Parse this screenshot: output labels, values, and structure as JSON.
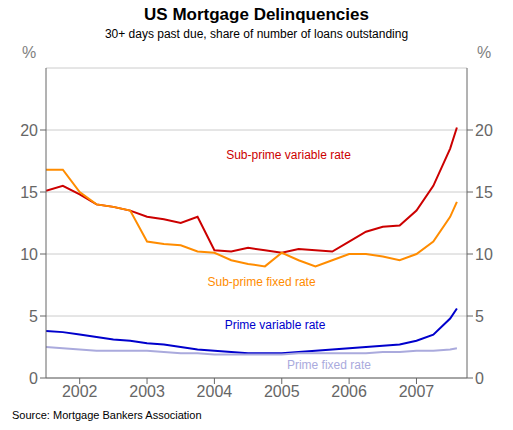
{
  "chart_data": {
    "type": "line",
    "title": "US Mortgage Delinquencies",
    "subtitle": "30+ days past due, share of number of loans outstanding",
    "source": "Source: Mortgage Bankers Association",
    "ylabel": "%",
    "y2label": "%",
    "x": [
      2001.5,
      2001.75,
      2002.0,
      2002.25,
      2002.5,
      2002.75,
      2003.0,
      2003.25,
      2003.5,
      2003.75,
      2004.0,
      2004.25,
      2004.5,
      2004.75,
      2005.0,
      2005.25,
      2005.5,
      2005.75,
      2006.0,
      2006.25,
      2006.5,
      2006.75,
      2007.0,
      2007.25,
      2007.5,
      2007.6
    ],
    "xlim": [
      2001.5,
      2007.75
    ],
    "xticks": [
      2002,
      2003,
      2004,
      2005,
      2006,
      2007
    ],
    "ylim": [
      0,
      25
    ],
    "yticks": [
      0,
      5,
      10,
      15,
      20
    ],
    "y2lim": [
      0,
      25
    ],
    "y2ticks": [
      0,
      5,
      10,
      15,
      20
    ],
    "grid": true,
    "series": [
      {
        "color": "#cc0000",
        "values": [
          15.1,
          15.5,
          14.8,
          14.0,
          13.8,
          13.5,
          13.0,
          12.8,
          12.5,
          13.0,
          10.3,
          10.2,
          10.5,
          10.3,
          10.1,
          10.4,
          10.3,
          10.2,
          11.0,
          11.8,
          12.2,
          12.3,
          13.5,
          15.5,
          18.5,
          20.2
        ]
      },
      {
        "color": "#ff8c00",
        "values": [
          16.8,
          16.8,
          15.0,
          14.0,
          13.8,
          13.5,
          11.0,
          10.8,
          10.7,
          10.2,
          10.1,
          9.5,
          9.2,
          9.0,
          10.1,
          9.5,
          9.0,
          9.5,
          10.0,
          10.0,
          9.8,
          9.5,
          10.0,
          11.0,
          13.0,
          14.2
        ]
      },
      {
        "color": "#0000cc",
        "values": [
          3.8,
          3.7,
          3.5,
          3.3,
          3.1,
          3.0,
          2.8,
          2.7,
          2.5,
          2.3,
          2.2,
          2.1,
          2.0,
          2.0,
          2.0,
          2.1,
          2.2,
          2.3,
          2.4,
          2.5,
          2.6,
          2.7,
          3.0,
          3.5,
          4.8,
          5.6
        ]
      },
      {
        "color": "#aaaadd",
        "values": [
          2.5,
          2.4,
          2.3,
          2.2,
          2.2,
          2.2,
          2.2,
          2.1,
          2.0,
          2.0,
          1.9,
          1.9,
          1.9,
          1.9,
          1.9,
          2.0,
          2.0,
          2.0,
          2.0,
          2.0,
          2.1,
          2.1,
          2.2,
          2.2,
          2.3,
          2.4
        ]
      }
    ],
    "annotations": [
      {
        "text": "Sub-prime variable rate",
        "x": 2005.1,
        "y": 18.0,
        "color": "#cc0000"
      },
      {
        "text": "Sub-prime fixed rate",
        "x": 2004.7,
        "y": 7.8,
        "color": "#ff8c00"
      },
      {
        "text": "Prime variable rate",
        "x": 2004.9,
        "y": 4.3,
        "color": "#0000cc"
      },
      {
        "text": "Prime fixed rate",
        "x": 2005.7,
        "y": 1.1,
        "color": "#aaaadd"
      }
    ]
  }
}
